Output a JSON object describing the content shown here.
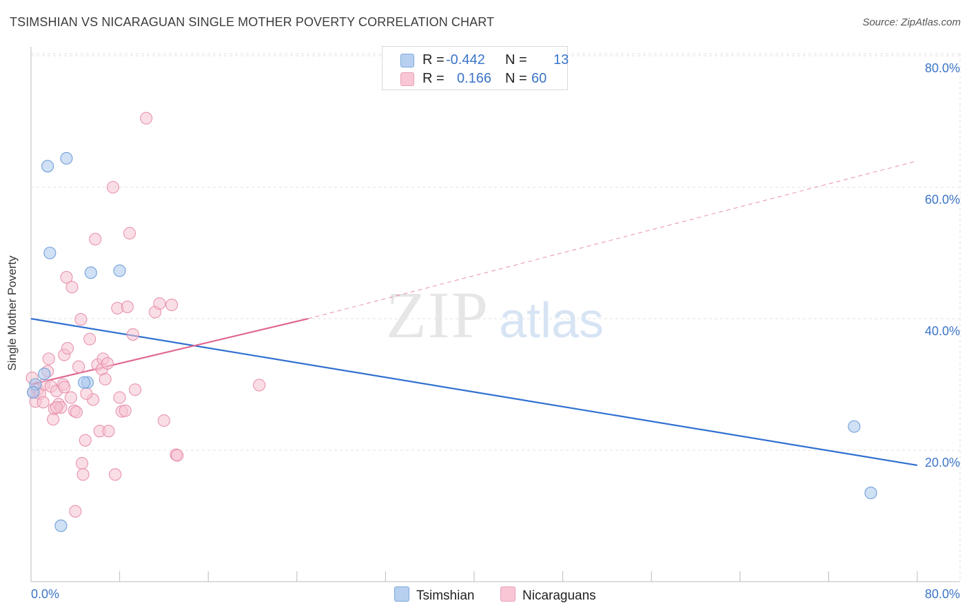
{
  "title": "TSIMSHIAN VS NICARAGUAN SINGLE MOTHER POVERTY CORRELATION CHART",
  "source": "Source: ZipAtlas.com",
  "watermark": {
    "zip": "ZIP",
    "atlas": "atlas"
  },
  "legend": {
    "r_label": "R =",
    "n_label": "N =",
    "series": [
      {
        "name": "Tsimshian",
        "r": "-0.442",
        "n": "13",
        "fill": "#b8d0f0",
        "stroke": "#7aa6dd"
      },
      {
        "name": "Nicaraguans",
        "r": "0.166",
        "n": "60",
        "fill": "#f8c6d4",
        "stroke": "#e8a0b8"
      }
    ]
  },
  "colors": {
    "blue_point": "#a9c6ec",
    "blue_edge": "#6f9fd8",
    "blue_line": "#2f6fd0",
    "pink_point": "#f6c2d2",
    "pink_edge": "#e892ae",
    "pink_line": "#e0688f",
    "axis_text": "#3a74c8",
    "grid": "#e2e2e2"
  },
  "chart_data": {
    "type": "scatter",
    "title": "TSIMSHIAN VS NICARAGUAN SINGLE MOTHER POVERTY CORRELATION CHART",
    "xlabel": "",
    "ylabel": "Single Mother Poverty",
    "xlim": [
      0,
      80
    ],
    "ylim": [
      0,
      80
    ],
    "x_tick_labels": [
      "0.0%",
      "80.0%"
    ],
    "y_ticks": [
      20,
      40,
      60,
      80
    ],
    "y_tick_labels": [
      "20.0%",
      "40.0%",
      "60.0%",
      "80.0%"
    ],
    "grid": true,
    "legend_position": "top-center",
    "series": [
      {
        "name": "Tsimshian",
        "r": -0.442,
        "n": 13,
        "points": [
          [
            0.4,
            30.0
          ],
          [
            1.2,
            31.6
          ],
          [
            1.5,
            63.2
          ],
          [
            1.7,
            50.0
          ],
          [
            3.2,
            64.4
          ],
          [
            2.7,
            8.5
          ],
          [
            5.1,
            30.3
          ],
          [
            4.8,
            30.3
          ],
          [
            5.4,
            47.0
          ],
          [
            8.0,
            47.3
          ],
          [
            74.3,
            23.6
          ],
          [
            75.8,
            13.5
          ],
          [
            0.2,
            28.8
          ]
        ],
        "trend": {
          "x": [
            0,
            80
          ],
          "y": [
            40.0,
            17.7
          ],
          "style": "solid"
        }
      },
      {
        "name": "Nicaraguans",
        "r": 0.166,
        "n": 60,
        "points": [
          [
            0.1,
            31.0
          ],
          [
            0.2,
            28.8
          ],
          [
            0.4,
            27.4
          ],
          [
            0.6,
            29.2
          ],
          [
            0.8,
            28.6
          ],
          [
            1.1,
            27.3
          ],
          [
            1.2,
            30.0
          ],
          [
            1.5,
            32.0
          ],
          [
            1.6,
            33.9
          ],
          [
            1.8,
            29.7
          ],
          [
            2.0,
            24.7
          ],
          [
            2.1,
            26.3
          ],
          [
            2.3,
            29.0
          ],
          [
            2.5,
            27.0
          ],
          [
            2.7,
            26.5
          ],
          [
            2.9,
            30.0
          ],
          [
            3.0,
            34.5
          ],
          [
            3.2,
            46.3
          ],
          [
            3.3,
            35.5
          ],
          [
            3.6,
            28.0
          ],
          [
            3.7,
            44.8
          ],
          [
            3.9,
            26.0
          ],
          [
            4.1,
            25.8
          ],
          [
            4.3,
            32.7
          ],
          [
            4.5,
            39.9
          ],
          [
            4.6,
            18.0
          ],
          [
            4.7,
            16.3
          ],
          [
            4.9,
            21.5
          ],
          [
            5.3,
            36.9
          ],
          [
            5.6,
            27.7
          ],
          [
            5.8,
            52.1
          ],
          [
            6.0,
            33.0
          ],
          [
            6.2,
            22.9
          ],
          [
            6.4,
            32.3
          ],
          [
            6.5,
            33.9
          ],
          [
            6.7,
            30.8
          ],
          [
            6.9,
            33.2
          ],
          [
            7.0,
            22.9
          ],
          [
            7.4,
            60.0
          ],
          [
            7.6,
            16.3
          ],
          [
            7.8,
            41.6
          ],
          [
            8.0,
            28.0
          ],
          [
            8.2,
            25.9
          ],
          [
            8.5,
            26.0
          ],
          [
            8.7,
            41.8
          ],
          [
            8.9,
            53.0
          ],
          [
            9.2,
            37.6
          ],
          [
            9.4,
            29.2
          ],
          [
            10.4,
            70.5
          ],
          [
            11.2,
            41.0
          ],
          [
            11.6,
            42.3
          ],
          [
            12.0,
            24.5
          ],
          [
            12.7,
            42.1
          ],
          [
            13.1,
            19.3
          ],
          [
            13.2,
            19.2
          ],
          [
            20.6,
            29.9
          ],
          [
            3.0,
            29.6
          ],
          [
            2.3,
            26.5
          ],
          [
            4.0,
            10.7
          ],
          [
            5.0,
            28.6
          ]
        ],
        "trend": {
          "x": [
            0,
            25
          ],
          "y": [
            30.0,
            40.0
          ],
          "style": "solid",
          "dashed_extension": {
            "x": [
              25,
              80
            ],
            "y": [
              40.0,
              64.0
            ]
          }
        }
      }
    ]
  }
}
